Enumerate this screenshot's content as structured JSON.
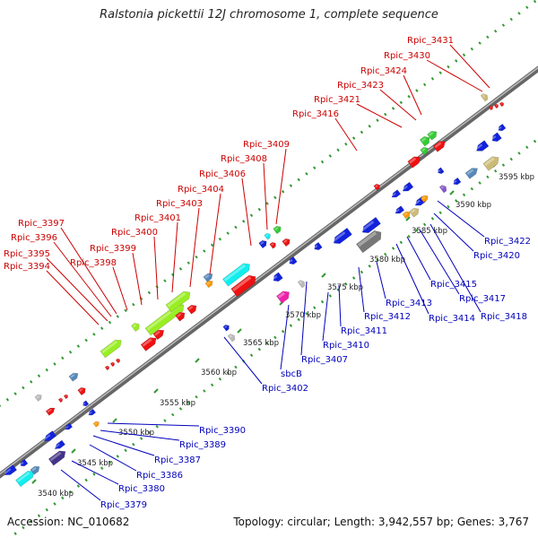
{
  "title": "Ralstonia pickettii 12J chromosome 1, complete sequence",
  "footer": {
    "accession": "Accession: NC_010682",
    "summary": "Topology: circular; Length: 3,942,557 bp; Genes: 3,767"
  },
  "kbp_labels": [
    "3540 kbp",
    "3545 kbp",
    "3550 kbp",
    "3555 kbp",
    "3560 kbp",
    "3565 kbp",
    "3570 kbp",
    "3575 kbp",
    "3580 kbp",
    "3585 kbp",
    "3590 kbp",
    "3595 kbp"
  ],
  "colors": {
    "red_label": "#cc0000",
    "blue_label": "#0000bb",
    "red": "#ee1111",
    "blue": "#1122dd",
    "green": "#33cc33",
    "lightgreen": "#99ee22",
    "cyan": "#11eeee",
    "magenta": "#ee22aa",
    "gray": "#777777",
    "orange": "#ff9900",
    "steel": "#5588bb",
    "tan": "#ccbb77",
    "violet": "#8855cc",
    "navy": "#443388",
    "lightgray": "#bbbbbb"
  },
  "top_labels": [
    "Rpic_3394",
    "Rpic_3395",
    "Rpic_3396",
    "Rpic_3397",
    "Rpic_3398",
    "Rpic_3399",
    "Rpic_3400",
    "Rpic_3401",
    "Rpic_3403",
    "Rpic_3404",
    "Rpic_3406",
    "Rpic_3408",
    "Rpic_3409",
    "Rpic_3416",
    "Rpic_3421",
    "Rpic_3423",
    "Rpic_3424",
    "Rpic_3430",
    "Rpic_3431"
  ],
  "bottom_labels": [
    "Rpic_3379",
    "Rpic_3380",
    "Rpic_3386",
    "Rpic_3387",
    "Rpic_3389",
    "Rpic_3390",
    "Rpic_3402",
    "sbcB",
    "Rpic_3407",
    "Rpic_3410",
    "Rpic_3411",
    "Rpic_3412",
    "Rpic_3413",
    "Rpic_3414",
    "Rpic_3415",
    "Rpic_3417",
    "Rpic_3418",
    "Rpic_3420",
    "Rpic_3422"
  ]
}
